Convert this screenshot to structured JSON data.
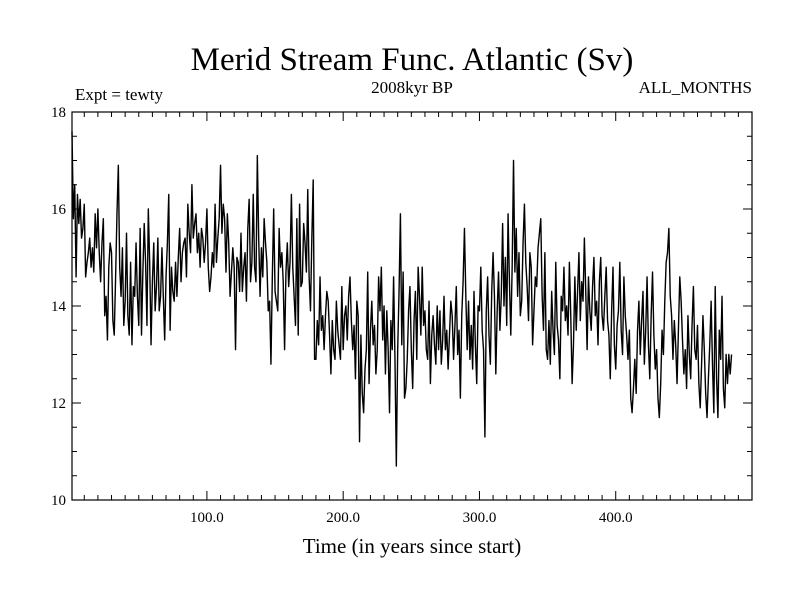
{
  "chart_data": {
    "type": "line",
    "title": "Merid Stream Func. Atlantic (Sv)",
    "subtitle": "2008kyr BP",
    "left_label": "Expt = tewty",
    "right_label": "ALL_MONTHS",
    "xlabel": "Time (in years since start)",
    "ylabel": "",
    "xlim": [
      1,
      500
    ],
    "ylim": [
      10,
      18
    ],
    "x_ticks": [
      100,
      200,
      300,
      400
    ],
    "x_tick_labels": [
      "100.0",
      "200.0",
      "300.0",
      "400.0"
    ],
    "y_ticks": [
      10,
      12,
      14,
      16,
      18
    ],
    "y_tick_labels": [
      "10",
      "12",
      "14",
      "16",
      "18"
    ],
    "grid": false,
    "series": [
      {
        "name": "Merid Stream Func. Atlantic",
        "color": "#000000",
        "x_start": 1,
        "x_step": 1,
        "values": [
          17.6,
          15.8,
          16.5,
          14.6,
          16.3,
          15.7,
          16.2,
          15.4,
          15.6,
          16.1,
          14.6,
          14.9,
          15.1,
          15.4,
          14.8,
          15.2,
          14.7,
          15.9,
          15.2,
          16.0,
          15.1,
          14.5,
          15.3,
          15.8,
          13.8,
          14.2,
          13.3,
          14.8,
          15.3,
          15.1,
          13.7,
          13.4,
          14.6,
          15.9,
          16.9,
          14.8,
          14.2,
          15.2,
          13.6,
          14.1,
          15.5,
          13.8,
          13.4,
          14.9,
          13.2,
          14.4,
          14.2,
          15.3,
          14.2,
          13.6,
          15.6,
          13.4,
          14.7,
          15.7,
          14.9,
          13.6,
          16.0,
          14.9,
          13.2,
          14.5,
          15.3,
          13.9,
          14.4,
          15.4,
          13.9,
          14.2,
          15.2,
          14.2,
          13.3,
          14.6,
          15.3,
          16.3,
          13.5,
          14.8,
          14.3,
          14.1,
          14.9,
          14.2,
          15.0,
          15.6,
          14.5,
          15.1,
          15.3,
          15.4,
          14.6,
          16.1,
          15.5,
          15.1,
          16.5,
          15.4,
          15.7,
          15.9,
          15.1,
          15.5,
          14.8,
          15.6,
          15.4,
          14.9,
          15.3,
          16.0,
          14.8,
          14.3,
          14.6,
          15.1,
          14.8,
          16.1,
          14.9,
          15.4,
          15.8,
          16.9,
          15.5,
          16.1,
          15.8,
          14.7,
          15.9,
          15.3,
          14.2,
          14.7,
          15.2,
          14.8,
          13.1,
          15.0,
          14.9,
          14.3,
          15.5,
          14.3,
          14.8,
          15.1,
          14.1,
          15.6,
          16.2,
          14.5,
          14.9,
          16.3,
          14.8,
          14.5,
          17.1,
          15.4,
          14.2,
          15.2,
          14.6,
          15.8,
          15.3,
          14.9,
          13.9,
          14.1,
          12.8,
          14.6,
          16.0,
          14.3,
          14.1,
          13.9,
          15.6,
          14.8,
          15.1,
          14.5,
          13.1,
          14.7,
          15.3,
          14.4,
          14.9,
          16.3,
          14.8,
          14.2,
          13.6,
          15.8,
          13.4,
          16.1,
          14.4,
          14.5,
          15.7,
          15.3,
          14.7,
          16.4,
          14.6,
          13.9,
          15.4,
          16.6,
          12.9,
          12.9,
          13.7,
          13.2,
          14.6,
          13.5,
          13.8,
          13.1,
          13.8,
          14.3,
          14.1,
          13.4,
          12.6,
          13.7,
          13.1,
          12.9,
          14.1,
          13.5,
          13.2,
          12.9,
          14.4,
          13.1,
          13.8,
          14.0,
          13.3,
          14.2,
          14.6,
          13.7,
          13.1,
          13.6,
          12.5,
          14.1,
          13.8,
          11.2,
          13.4,
          12.2,
          11.8,
          12.7,
          13.1,
          14.7,
          12.4,
          13.5,
          14.1,
          13.2,
          13.6,
          12.6,
          13.1,
          14.6,
          13.9,
          14.8,
          13.3,
          14.0,
          12.6,
          13.9,
          13.1,
          11.8,
          13.7,
          13.1,
          14.6,
          12.9,
          10.7,
          13.1,
          14.3,
          15.9,
          13.2,
          14.7,
          12.1,
          12.3,
          12.9,
          13.9,
          14.4,
          13.1,
          12.3,
          13.7,
          14.3,
          12.9,
          14.8,
          14.2,
          13.4,
          14.8,
          13.6,
          13.9,
          13.1,
          12.9,
          14.1,
          12.4,
          13.4,
          13.8,
          13.2,
          12.8,
          14.0,
          13.1,
          13.9,
          12.8,
          13.3,
          14.2,
          13.1,
          13.5,
          12.7,
          13.4,
          14.1,
          13.8,
          12.9,
          13.6,
          14.4,
          13.0,
          13.5,
          12.1,
          13.8,
          14.5,
          15.6,
          14.2,
          13.1,
          14.1,
          12.9,
          13.6,
          12.7,
          14.3,
          13.2,
          12.4,
          14.0,
          13.9,
          14.8,
          13.5,
          13.1,
          11.3,
          13.9,
          14.6,
          13.4,
          12.8,
          14.3,
          15.1,
          14.2,
          12.6,
          13.9,
          14.7,
          13.5,
          14.2,
          15.7,
          14.0,
          15.0,
          13.6,
          15.9,
          14.5,
          13.4,
          14.8,
          17.0,
          14.7,
          15.6,
          14.2,
          15.1,
          13.8,
          14.1,
          15.3,
          16.1,
          14.9,
          14.4,
          13.7,
          15.1,
          14.8,
          13.2,
          13.9,
          14.6,
          14.4,
          15.2,
          15.5,
          15.8,
          14.2,
          13.5,
          15.1,
          13.1,
          12.9,
          13.7,
          12.8,
          14.3,
          13.5,
          13.0,
          14.9,
          13.6,
          13.3,
          12.5,
          14.2,
          13.9,
          14.8,
          13.7,
          14.0,
          13.4,
          14.9,
          13.8,
          12.4,
          13.2,
          14.6,
          13.5,
          14.3,
          15.1,
          13.7,
          14.5,
          14.1,
          15.4,
          14.3,
          13.1,
          14.6,
          13.9,
          13.5,
          14.4,
          15.0,
          13.8,
          14.1,
          13.2,
          14.5,
          15.0,
          13.8,
          13.5,
          14.2,
          14.8,
          13.7,
          13.4,
          12.5,
          13.9,
          14.8,
          13.2,
          12.7,
          13.6,
          13.9,
          14.9,
          13.5,
          13.0,
          14.6,
          13.8,
          13.4,
          12.9,
          13.5,
          12.1,
          11.8,
          12.3,
          12.9,
          12.2,
          13.5,
          14.1,
          13.0,
          13.7,
          14.3,
          12.8,
          13.5,
          14.6,
          13.2,
          12.5,
          13.8,
          14.7,
          13.4,
          12.7,
          13.1,
          12.1,
          11.7,
          12.4,
          13.5,
          13.0,
          14.1,
          14.9,
          15.1,
          15.6,
          14.2,
          13.8,
          12.9,
          13.7,
          13.2,
          12.4,
          13.5,
          14.6,
          14.1,
          13.3,
          12.6,
          13.1,
          12.3,
          13.8,
          13.0,
          12.5,
          13.6,
          14.4,
          13.1,
          12.9,
          13.6,
          12.4,
          11.9,
          12.8,
          13.8,
          13.1,
          12.2,
          11.7,
          12.5,
          13.2,
          14.1,
          12.8,
          11.8,
          14.4,
          12.5,
          11.7,
          13.5,
          12.9,
          14.2,
          12.3,
          11.9,
          13.0,
          12.4,
          13.0,
          12.6,
          13.0
        ]
      }
    ]
  }
}
